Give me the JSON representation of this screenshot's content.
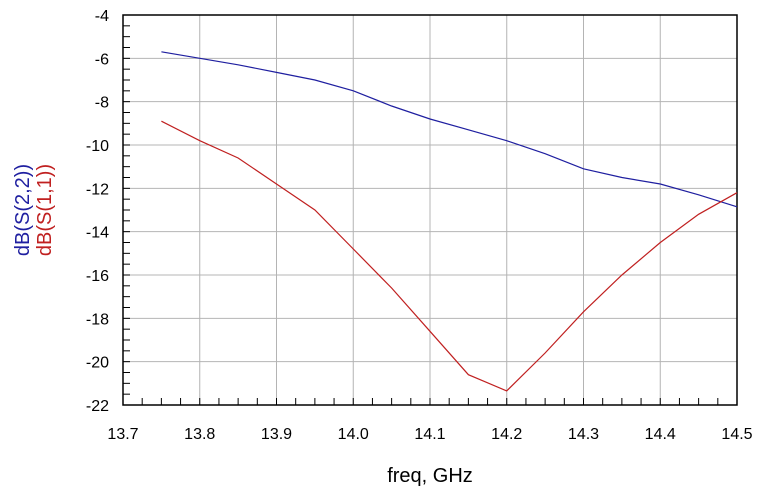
{
  "chart_data": {
    "type": "line",
    "xlabel": "freq, GHz",
    "xlim": [
      13.7,
      14.5
    ],
    "ylim": [
      -22,
      -4
    ],
    "x_ticks": [
      "13.7",
      "13.8",
      "13.9",
      "14.0",
      "14.1",
      "14.2",
      "14.3",
      "14.4",
      "14.5"
    ],
    "y_ticks": [
      "-4",
      "-6",
      "-8",
      "-10",
      "-12",
      "-14",
      "-16",
      "-18",
      "-20",
      "-22"
    ],
    "grid": true,
    "series": [
      {
        "name": "dB(S(2,2))",
        "color": "#1f1fa0",
        "x": [
          13.75,
          13.8,
          13.85,
          13.9,
          13.95,
          14.0,
          14.05,
          14.1,
          14.15,
          14.2,
          14.25,
          14.3,
          14.35,
          14.4,
          14.45,
          14.5
        ],
        "y": [
          -5.7,
          -6.0,
          -6.3,
          -6.65,
          -7.0,
          -7.5,
          -8.2,
          -8.8,
          -9.3,
          -9.8,
          -10.4,
          -11.1,
          -11.5,
          -11.8,
          -12.3,
          -12.85
        ]
      },
      {
        "name": "dB(S(1,1))",
        "color": "#c02020",
        "x": [
          13.75,
          13.8,
          13.85,
          13.9,
          13.95,
          14.0,
          14.05,
          14.1,
          14.15,
          14.2,
          14.25,
          14.3,
          14.35,
          14.4,
          14.45,
          14.5
        ],
        "y": [
          -8.9,
          -9.8,
          -10.6,
          -11.8,
          -13.0,
          -14.8,
          -16.6,
          -18.6,
          -20.6,
          -21.35,
          -19.6,
          -17.7,
          -16.0,
          -14.5,
          -13.2,
          -12.2
        ]
      }
    ]
  }
}
